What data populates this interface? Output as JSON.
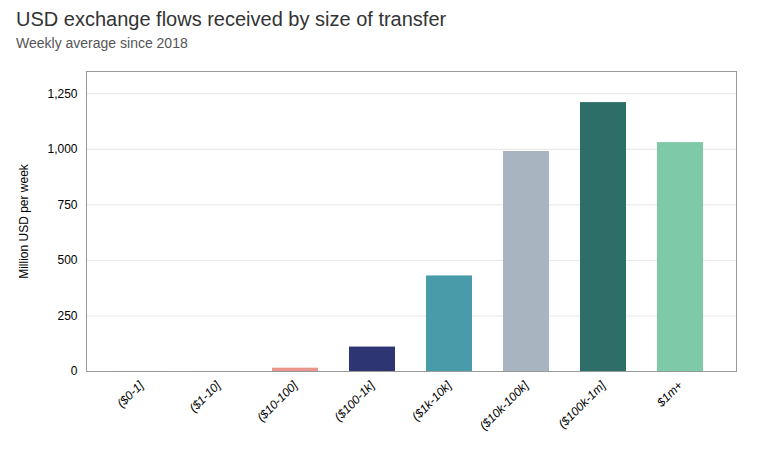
{
  "chart_data": {
    "type": "bar",
    "title": "USD exchange flows received by size of transfer",
    "subtitle": "Weekly average since 2018",
    "ylabel": "Million USD per week",
    "categories": [
      "($0-1]",
      "($1-10]",
      "($10-100]",
      "($100-1k]",
      "($1k-10k]",
      "($10k-100k]",
      "($100k-1m]",
      "$1m+"
    ],
    "values": [
      0.3,
      0.15,
      15,
      110,
      430,
      990,
      1210,
      1030
    ],
    "colors": [
      "#e8a09a",
      "#e8a09a",
      "#e8968e",
      "#2d3572",
      "#4a9baa",
      "#a8b4c0",
      "#2d6e68",
      "#7ec9a8"
    ],
    "ylim": [
      0,
      1350
    ],
    "yticks": [
      0,
      250,
      500,
      750,
      {
        "value": 1000,
        "label": "1,000"
      },
      {
        "value": 1250,
        "label": "1,250"
      }
    ],
    "grid": true
  }
}
